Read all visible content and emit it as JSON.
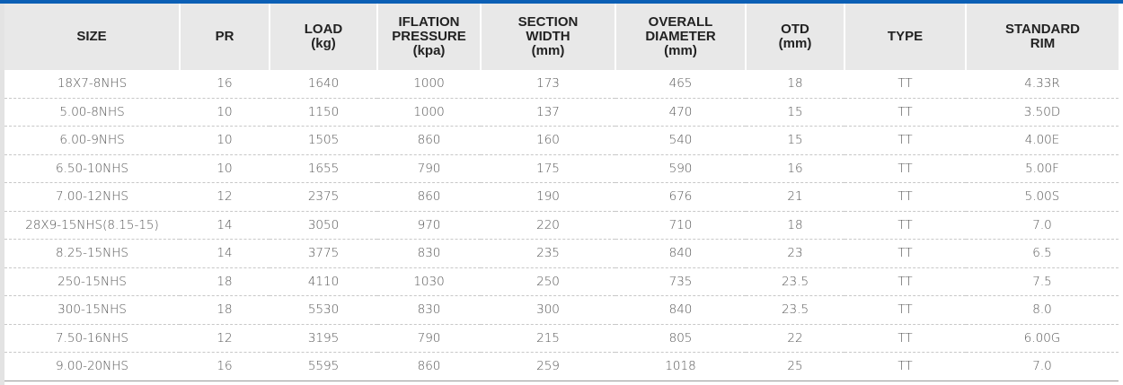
{
  "table": {
    "header": [
      [
        "SIZE"
      ],
      [
        "PR"
      ],
      [
        "LOAD",
        "(kg)"
      ],
      [
        "IFLATION",
        "PRESSURE",
        "(kpa)"
      ],
      [
        "SECTION",
        "WIDTH",
        "(mm)"
      ],
      [
        "OVERALL",
        "DIAMETER",
        "(mm)"
      ],
      [
        "OTD",
        "(mm)"
      ],
      [
        "TYPE"
      ],
      [
        "STANDARD",
        "RIM"
      ]
    ],
    "rows": [
      [
        "18X7-8NHS",
        "16",
        "1640",
        "1000",
        "173",
        "465",
        "18",
        "TT",
        "4.33R"
      ],
      [
        "5.00-8NHS",
        "10",
        "1150",
        "1000",
        "137",
        "470",
        "15",
        "TT",
        "3.50D"
      ],
      [
        "6.00-9NHS",
        "10",
        "1505",
        "860",
        "160",
        "540",
        "15",
        "TT",
        "4.00E"
      ],
      [
        "6.50-10NHS",
        "10",
        "1655",
        "790",
        "175",
        "590",
        "16",
        "TT",
        "5.00F"
      ],
      [
        "7.00-12NHS",
        "12",
        "2375",
        "860",
        "190",
        "676",
        "21",
        "TT",
        "5.00S"
      ],
      [
        "28X9-15NHS(8.15-15)",
        "14",
        "3050",
        "970",
        "220",
        "710",
        "18",
        "TT",
        "7.0"
      ],
      [
        "8.25-15NHS",
        "14",
        "3775",
        "830",
        "235",
        "840",
        "23",
        "TT",
        "6.5"
      ],
      [
        "250-15NHS",
        "18",
        "4110",
        "1030",
        "250",
        "735",
        "23.5",
        "TT",
        "7.5"
      ],
      [
        "300-15NHS",
        "18",
        "5530",
        "830",
        "300",
        "840",
        "23.5",
        "TT",
        "8.0"
      ],
      [
        "7.50-16NHS",
        "12",
        "3195",
        "790",
        "215",
        "805",
        "22",
        "TT",
        "6.00G"
      ],
      [
        "9.00-20NHS",
        "16",
        "5595",
        "860",
        "259",
        "1018",
        "25",
        "TT",
        "7.0"
      ]
    ]
  }
}
